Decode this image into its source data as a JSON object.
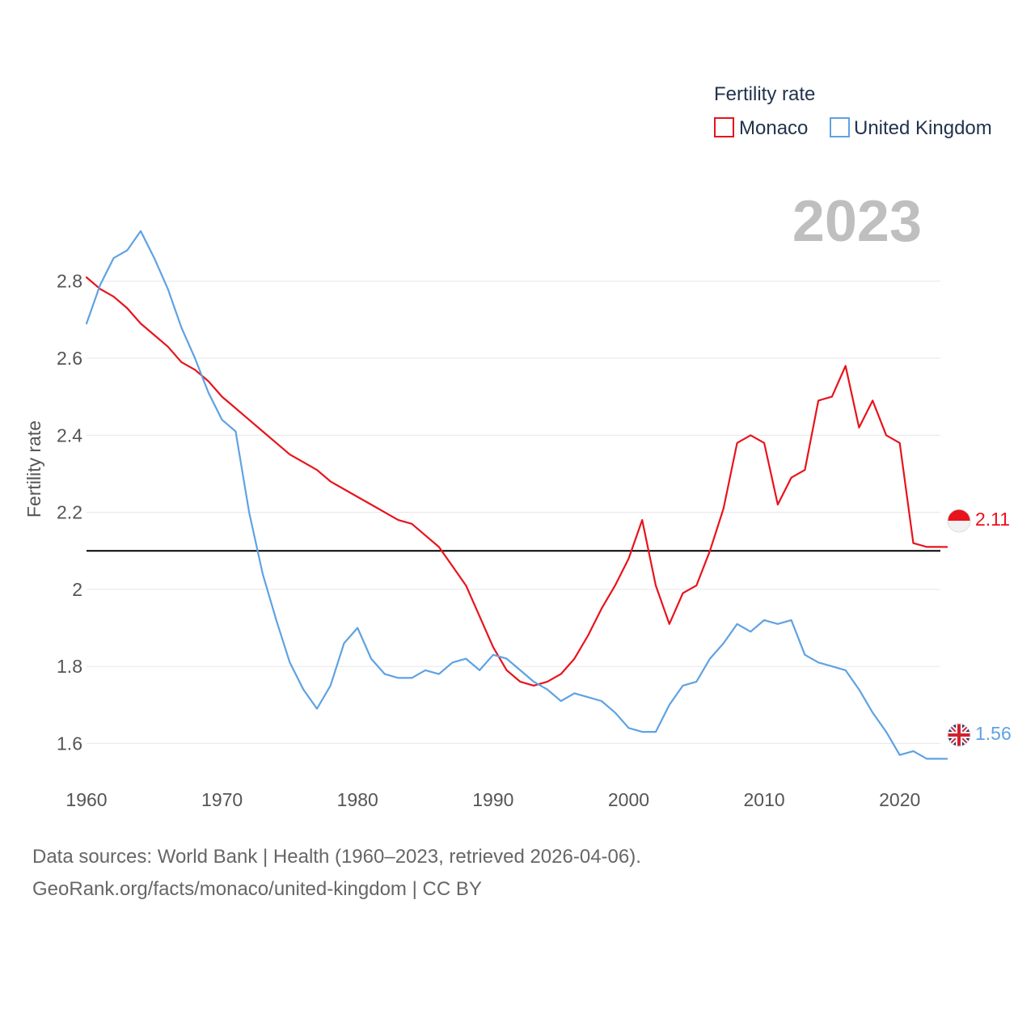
{
  "chart_data": {
    "type": "line",
    "title": "Fertility rate",
    "year_label": "2023",
    "ylabel": "Fertility rate",
    "xlabel": "",
    "xlim": [
      1960,
      2023
    ],
    "ylim": [
      1.5,
      2.98
    ],
    "x_ticks": [
      1960,
      1970,
      1980,
      1990,
      2000,
      2010,
      2020
    ],
    "y_ticks": [
      1.6,
      1.8,
      2.0,
      2.2,
      2.4,
      2.6,
      2.8
    ],
    "y_tick_labels": [
      "1.6",
      "1.8",
      "2",
      "2.2",
      "2.4",
      "2.6",
      "2.8"
    ],
    "x_tick_labels": [
      "1960",
      "1970",
      "1980",
      "1990",
      "2000",
      "2010",
      "2020"
    ],
    "reference_line": {
      "y": 2.1,
      "color": "#000000"
    },
    "legend_title": "Fertility rate",
    "legend_position": "top-right",
    "x": [
      1960,
      1961,
      1962,
      1963,
      1964,
      1965,
      1966,
      1967,
      1968,
      1969,
      1970,
      1971,
      1972,
      1973,
      1974,
      1975,
      1976,
      1977,
      1978,
      1979,
      1980,
      1981,
      1982,
      1983,
      1984,
      1985,
      1986,
      1987,
      1988,
      1989,
      1990,
      1991,
      1992,
      1993,
      1994,
      1995,
      1996,
      1997,
      1998,
      1999,
      2000,
      2001,
      2002,
      2003,
      2004,
      2005,
      2006,
      2007,
      2008,
      2009,
      2010,
      2011,
      2012,
      2013,
      2014,
      2015,
      2016,
      2017,
      2018,
      2019,
      2020,
      2021,
      2022,
      2023
    ],
    "series": [
      {
        "name": "Monaco",
        "color": "#e8131c",
        "end_label": "2.11",
        "values": [
          2.81,
          2.78,
          2.76,
          2.73,
          2.69,
          2.66,
          2.63,
          2.59,
          2.57,
          2.54,
          2.5,
          2.47,
          2.44,
          2.41,
          2.38,
          2.35,
          2.33,
          2.31,
          2.28,
          2.26,
          2.24,
          2.22,
          2.2,
          2.18,
          2.17,
          2.14,
          2.11,
          2.06,
          2.01,
          1.93,
          1.85,
          1.79,
          1.76,
          1.75,
          1.76,
          1.78,
          1.82,
          1.88,
          1.95,
          2.01,
          2.08,
          2.18,
          2.01,
          1.91,
          1.99,
          2.01,
          2.1,
          2.21,
          2.38,
          2.4,
          2.38,
          2.22,
          2.29,
          2.31,
          2.49,
          2.5,
          2.58,
          2.42,
          2.49,
          2.4,
          2.38,
          2.12,
          2.11,
          2.11
        ]
      },
      {
        "name": "United Kingdom",
        "color": "#5fa2e3",
        "end_label": "1.56",
        "values": [
          2.69,
          2.79,
          2.86,
          2.88,
          2.93,
          2.86,
          2.78,
          2.68,
          2.6,
          2.51,
          2.44,
          2.41,
          2.2,
          2.04,
          1.92,
          1.81,
          1.74,
          1.69,
          1.75,
          1.86,
          1.9,
          1.82,
          1.78,
          1.77,
          1.77,
          1.79,
          1.78,
          1.81,
          1.82,
          1.79,
          1.83,
          1.82,
          1.79,
          1.76,
          1.74,
          1.71,
          1.73,
          1.72,
          1.71,
          1.68,
          1.64,
          1.63,
          1.63,
          1.7,
          1.75,
          1.76,
          1.82,
          1.86,
          1.91,
          1.89,
          1.92,
          1.91,
          1.92,
          1.83,
          1.81,
          1.8,
          1.79,
          1.74,
          1.68,
          1.63,
          1.57,
          1.58,
          1.56,
          1.56
        ]
      }
    ]
  },
  "footer": {
    "line1": "Data sources: World Bank | Health (1960–2023, retrieved 2026-04-06).",
    "line2": "GeoRank.org/facts/monaco/united-kingdom | CC BY"
  },
  "flags": {
    "monaco": "monaco-flag-icon",
    "uk": "uk-flag-icon"
  }
}
